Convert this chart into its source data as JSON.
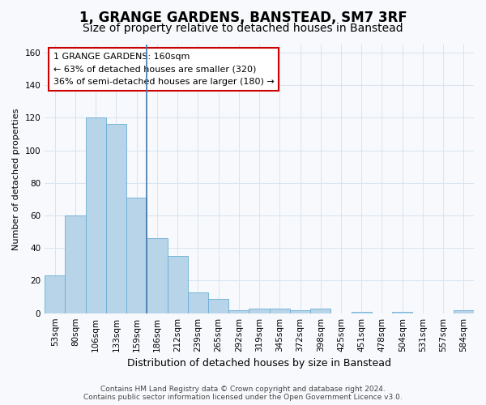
{
  "title": "1, GRANGE GARDENS, BANSTEAD, SM7 3RF",
  "subtitle": "Size of property relative to detached houses in Banstead",
  "xlabel": "Distribution of detached houses by size in Banstead",
  "ylabel": "Number of detached properties",
  "bar_labels": [
    "53sqm",
    "80sqm",
    "106sqm",
    "133sqm",
    "159sqm",
    "186sqm",
    "212sqm",
    "239sqm",
    "265sqm",
    "292sqm",
    "319sqm",
    "345sqm",
    "372sqm",
    "398sqm",
    "425sqm",
    "451sqm",
    "478sqm",
    "504sqm",
    "531sqm",
    "557sqm",
    "584sqm"
  ],
  "bar_values": [
    23,
    60,
    120,
    116,
    71,
    46,
    35,
    13,
    9,
    2,
    3,
    3,
    2,
    3,
    0,
    1,
    0,
    1,
    0,
    0,
    2
  ],
  "bar_color": "#b8d4e8",
  "bar_edge_color": "#6aaed6",
  "vline_index": 4,
  "vline_color": "#4477aa",
  "ylim": [
    0,
    165
  ],
  "yticks": [
    0,
    20,
    40,
    60,
    80,
    100,
    120,
    140,
    160
  ],
  "annotation_title": "1 GRANGE GARDENS: 160sqm",
  "annotation_line2": "← 63% of detached houses are smaller (320)",
  "annotation_line3": "36% of semi-detached houses are larger (180) →",
  "annotation_box_facecolor": "#ffffff",
  "annotation_box_edgecolor": "#cc0000",
  "footer_line1": "Contains HM Land Registry data © Crown copyright and database right 2024.",
  "footer_line2": "Contains public sector information licensed under the Open Government Licence v3.0.",
  "background_color": "#f7f9fc",
  "grid_color": "#d8e4f0",
  "title_fontsize": 12,
  "subtitle_fontsize": 10,
  "xlabel_fontsize": 9,
  "ylabel_fontsize": 8,
  "tick_fontsize": 7.5,
  "annotation_fontsize": 8,
  "footer_fontsize": 6.5
}
